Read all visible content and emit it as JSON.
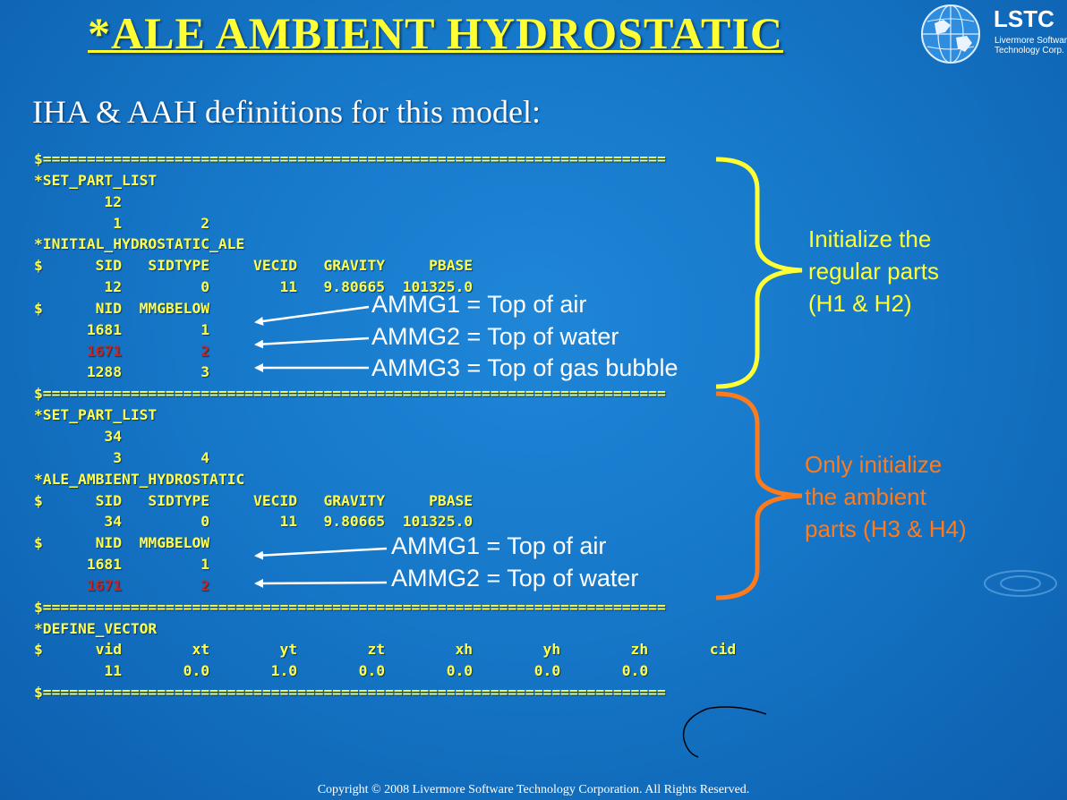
{
  "slide": {
    "title": "*ALE AMBIENT HYDROSTATIC",
    "subtitle": "IHA & AAH definitions for this model:",
    "copyright": "Copyright © 2008 Livermore Software Technology Corporation.  All Rights Reserved."
  },
  "logo": {
    "name": "LSTC",
    "line1": "Livermore Software",
    "line2": "Technology Corp."
  },
  "code_lines": [
    {
      "text": "$=======================================================================",
      "red": ""
    },
    {
      "text": "*SET_PART_LIST",
      "red": ""
    },
    {
      "text": "        12",
      "red": ""
    },
    {
      "text": "         1         2",
      "red": ""
    },
    {
      "text": "*INITIAL_HYDROSTATIC_ALE",
      "red": ""
    },
    {
      "text": "$      SID   SIDTYPE     VECID   GRAVITY     PBASE",
      "red": ""
    },
    {
      "text": "        12         0        11   9.80665  101325.0",
      "red": ""
    },
    {
      "text": "$      NID  MMGBELOW",
      "red": ""
    },
    {
      "text": "      1681         1",
      "red": ""
    },
    {
      "text": "      1671         2",
      "red": "all"
    },
    {
      "text": "      1288         3",
      "red": ""
    },
    {
      "text": "$=======================================================================",
      "red": ""
    },
    {
      "text": "*SET_PART_LIST",
      "red": ""
    },
    {
      "text": "        34",
      "red": ""
    },
    {
      "text": "         3         4",
      "red": ""
    },
    {
      "text": "*ALE_AMBIENT_HYDROSTATIC",
      "red": ""
    },
    {
      "text": "$      SID   SIDTYPE     VECID   GRAVITY     PBASE",
      "red": ""
    },
    {
      "text": "        34         0        11   9.80665  101325.0",
      "red": ""
    },
    {
      "text": "$      NID  MMGBELOW",
      "red": ""
    },
    {
      "text": "      1681         1",
      "red": ""
    },
    {
      "text": "      1671         2",
      "red": "all"
    },
    {
      "text": "$=======================================================================",
      "red": ""
    },
    {
      "text": "*DEFINE_VECTOR",
      "red": ""
    },
    {
      "text": "$      vid        xt        yt        zt        xh        yh        zh       cid",
      "red": ""
    },
    {
      "text": "        11       0.0       1.0       0.0       0.0       0.0       0.0",
      "red": ""
    },
    {
      "text": "$=======================================================================",
      "red": ""
    }
  ],
  "annotations": {
    "ih_ammg1": "AMMG1 = Top of air",
    "ih_ammg2": "AMMG2 = Top of water",
    "ih_ammg3": "AMMG3 = Top of gas bubble",
    "aah_ammg1": "AMMG1 = Top of air",
    "aah_ammg2": "AMMG2 = Top of water",
    "regular_line1": "Initialize the",
    "regular_line2": "regular parts",
    "regular_line3": "(H1 & H2)",
    "ambient_line1": "Only initialize",
    "ambient_line2": "the ambient",
    "ambient_line3": "parts (H3 & H4)"
  },
  "colors": {
    "background": "#1677c8",
    "title": "#ffff33",
    "code": "#ffff4d",
    "highlight_red": "#c8261b",
    "regular_brace": "#ffff33",
    "ambient_brace": "#ff7a1a"
  },
  "icons": {
    "logo": "globe-icon"
  }
}
